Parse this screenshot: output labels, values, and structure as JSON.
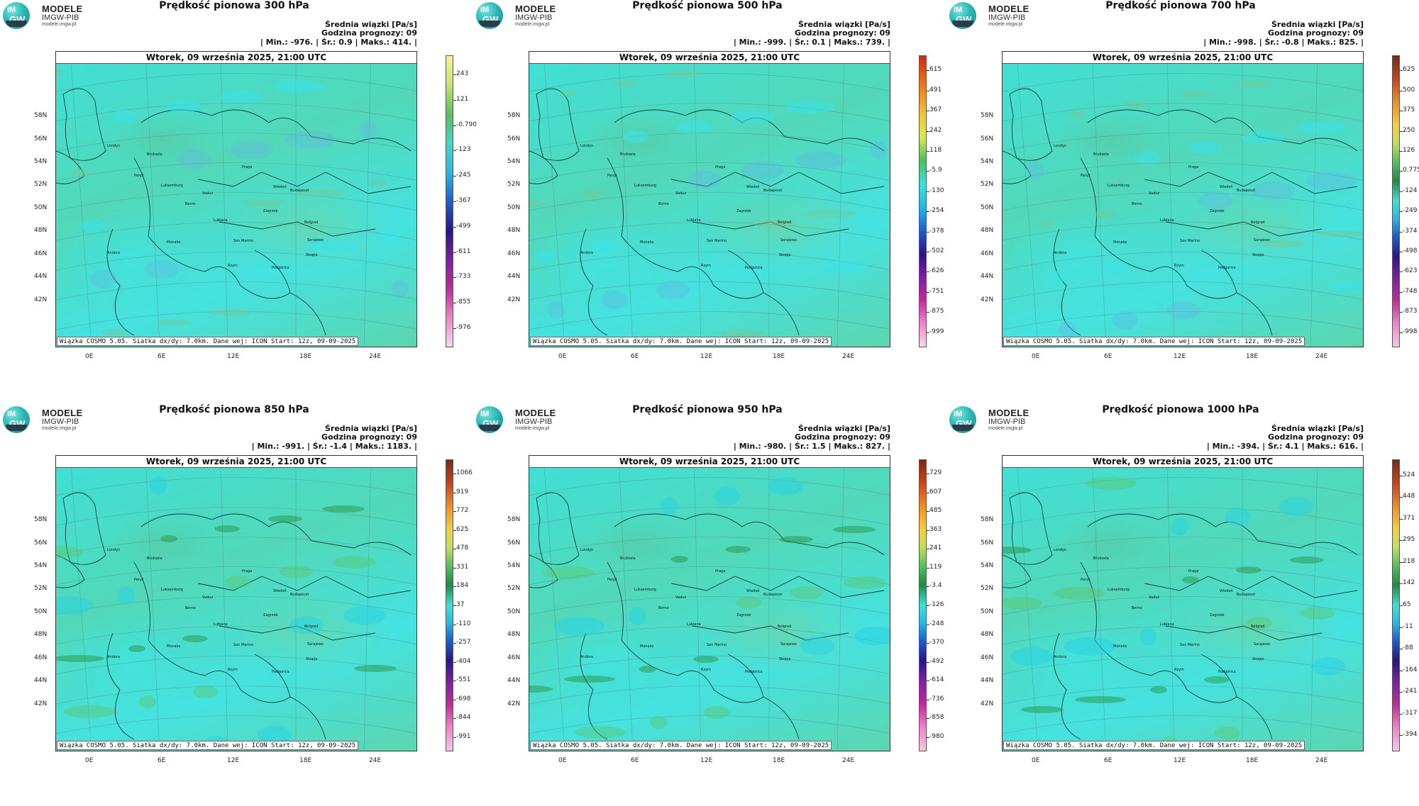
{
  "logo": {
    "line1": "MODELE",
    "line2": "IMGW-PIB",
    "line3": "modele.imgw.pl",
    "badge_top": "IM",
    "badge_bottom": "GW"
  },
  "common": {
    "info1": "Średnia wiązki [Pa/s]",
    "info2": "Godzina prognozy: 09",
    "date": "Wtorek, 09 września 2025, 21:00 UTC",
    "footer": "Wiązka COSMO 5.05. Siatka dx/dy: 7.0km. Dane wej: ICON Start: 12z, 09-09-2025",
    "lat_labels": [
      "58N",
      "56N",
      "54N",
      "52N",
      "50N",
      "48N",
      "46N",
      "44N",
      "42N"
    ],
    "lon_labels": [
      "0E",
      "6E",
      "12E",
      "18E",
      "24E"
    ],
    "cities": [
      "Londyn",
      "Bruksela",
      "Paryż",
      "Luksemburg",
      "Praga",
      "Wiedeń",
      "Vaduz",
      "Berno",
      "Budapeszt",
      "Zagrzeb",
      "Lublana",
      "Belgrad",
      "Monako",
      "San Marino",
      "Sarajewo",
      "Andora",
      "Rzym",
      "Skopje",
      "Podgorica"
    ]
  },
  "panels": [
    {
      "title": "Prędkość pionowa 300 hPa",
      "stats": "| Min.:   -976. | Śr.:    0.9 | Maks.:    414. |",
      "scale": [
        "243",
        "121",
        "-0.790",
        "-123",
        "-245",
        "-367",
        "-499",
        "-611",
        "-733",
        "-855",
        "-976"
      ],
      "scale_type": "a"
    },
    {
      "title": "Prędkość pionowa 500 hPa",
      "stats": "| Min.:   -999. | Śr.:    0.1 | Maks.:    739. |",
      "scale": [
        "615",
        "491",
        "367",
        "242",
        "118",
        "-5.9",
        "-130",
        "-254",
        "-378",
        "-502",
        "-626",
        "-751",
        "-875",
        "-999"
      ],
      "scale_type": "b"
    },
    {
      "title": "Prędkość pionowa 700 hPa",
      "stats": "| Min.:   -998. | Śr.:   -0.8 | Maks.:    825. |",
      "scale": [
        "625",
        "500",
        "375",
        "250",
        "126",
        "0.775",
        "-124",
        "-249",
        "-374",
        "-498",
        "-623",
        "-748",
        "-873",
        "-998"
      ],
      "scale_type": "c"
    },
    {
      "title": "Prędkość pionowa 850 hPa",
      "stats": "| Min.:   -991. | Śr.:   -1.4 | Maks.:   1183. |",
      "scale": [
        "1066",
        "919",
        "772",
        "625",
        "478",
        "331",
        "184",
        "37",
        "-110",
        "-257",
        "-404",
        "-551",
        "-698",
        "-844",
        "-991"
      ],
      "scale_type": "c"
    },
    {
      "title": "Prędkość pionowa 950 hPa",
      "stats": "| Min.:   -980. | Śr.:    1.5 | Maks.:    827. |",
      "scale": [
        "729",
        "607",
        "485",
        "363",
        "241",
        "119",
        "-3.4",
        "-126",
        "-248",
        "-370",
        "-492",
        "-614",
        "-736",
        "-858",
        "-980"
      ],
      "scale_type": "c"
    },
    {
      "title": "Prędkość pionowa 1000 hPa",
      "stats": "| Min.:   -394. | Śr.:    4.1 | Maks.:    616. |",
      "scale": [
        "524",
        "448",
        "371",
        "295",
        "218",
        "142",
        "65",
        "-11",
        "-88",
        "-164",
        "-241",
        "-317",
        "-394"
      ],
      "scale_type": "c"
    }
  ]
}
